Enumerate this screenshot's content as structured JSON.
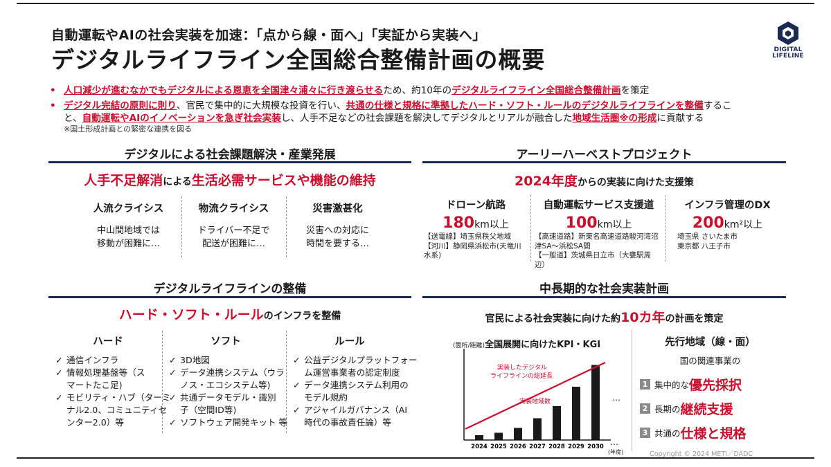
{
  "header": {
    "subtitle": "自動運転やAIの社会実装を加速：「点から線・面へ」「実証から実装へ」",
    "title": "デジタルライフライン全国総合整備計画の概要",
    "logo_line1": "DIGITAL",
    "logo_line2": "LIFELINE"
  },
  "bullets": {
    "b1_red": "人口減少が進むなかでもデジタルによる恩恵を全国津々浦々に行き渡らせる",
    "b1_mid": "ため、約10年の",
    "b1_red2": "デジタルライフライン全国総合整備計画",
    "b1_end": "を策定",
    "b2_red": "デジタル完結の原則に則り",
    "b2_mid": "、官民で集中的に大規模な投資を行い、",
    "b2_red2": "共通の仕様と規格に準拠したハード・ソフト・ルールのデジタルライフラインを整備",
    "b2_end": "するこ",
    "b3_start": "と、",
    "b3_red": "自動運転やAIのイノベーションを急ぎ社会実装",
    "b3_mid": "し、人手不足などの社会課題を解決してデジタルとリアルが融合した",
    "b3_red2": "地域生活圏※の形成",
    "b3_end": "に貢献する",
    "note": "※国土形成計画との緊密な連携を図る"
  },
  "left_top": {
    "title": "デジタルによる社会課題解決・産業発展",
    "headline_red1": "人手不足解消",
    "headline_mid": "による",
    "headline_red2": "生活必需サービスや機能の維持",
    "cols": [
      {
        "title": "人流クライシス",
        "line1": "中山間地域では",
        "line2": "移動が困難に…"
      },
      {
        "title": "物流クライシス",
        "line1": "ドライバー不足で",
        "line2": "配送が困難に…"
      },
      {
        "title": "災害激甚化",
        "line1": "災害への対応に",
        "line2": "時間を要する…"
      }
    ]
  },
  "right_top": {
    "title": "アーリーハーベストプロジェクト",
    "headline_red": "2024年度",
    "headline_rest": "からの実装に向けた支援策",
    "cols": [
      {
        "title": "ドローン航路",
        "num": "180",
        "unit": "km以上",
        "details": [
          "【送電線】埼玉県秩父地域",
          "【河川】静岡県浜松市(天竜川",
          "水系)"
        ]
      },
      {
        "title": "自動運転サービス支援道",
        "num": "100",
        "unit": "km以上",
        "details": [
          "【高速道路】新東名高速道路駿河湾沼",
          "津SA～浜松SA間",
          "【一般道】茨城県日立市（大甕駅周",
          "辺）"
        ]
      },
      {
        "title": "インフラ管理のDX",
        "num": "200",
        "unit": "km²以上",
        "details": [
          "埼玉県 さいたま市",
          "東京都 八王子市"
        ]
      }
    ]
  },
  "left_bottom": {
    "title": "デジタルライフラインの整備",
    "headline_red": "ハード・ソフト・ルール",
    "headline_rest": "のインフラを整備",
    "cols": [
      {
        "title": "ハード",
        "items": [
          "通信インフラ",
          "情報処理基盤等（ス",
          "マートたこ足)",
          "モビリティ・ハブ（ターミ",
          "ナル2.0、コミュニティセ",
          "ンター2.0）等"
        ]
      },
      {
        "title": "ソフト",
        "items": [
          "3D地図",
          "データ連携システム（ウラ",
          "ノス・エコシステム等)",
          "共通データモデル・識別",
          "子（空間ID等)",
          "ソフトウェア開発キット 等"
        ]
      },
      {
        "title": "ルール",
        "items": [
          "公益デジタルプラットフォー",
          "ム運営事業者の認定制度",
          "データ連携システム利用の",
          "モデル規約",
          "アジャイルガバナンス（AI",
          "時代の事故責任論）等"
        ]
      }
    ]
  },
  "right_bottom": {
    "title": "中長期的な社会実装計画",
    "headline_start": "官民による社会実装に向けた約",
    "headline_red": "10カ年",
    "headline_end": "の計画を策定",
    "chart_unit": "(箇所/距離)",
    "chart_title": "全国展開に向けたKPI・KGI",
    "line_label1": "実装したデジタル",
    "line_label2": "ライフラインの総延長",
    "bar_label": "実装地域数",
    "ellipsis": "…",
    "xunit": "(年度)",
    "region_title": "先行地域（線・面）",
    "region_sub": "国の関連事業の",
    "points": [
      {
        "num": "1",
        "pre": "集中的な",
        "red": "優先採択"
      },
      {
        "num": "2",
        "pre": "長期の",
        "red": "継続支援"
      },
      {
        "num": "3",
        "pre": "共通の",
        "red": "仕様と規格"
      }
    ]
  },
  "chart_data": {
    "type": "bar",
    "categories": [
      "2024",
      "2025",
      "2026",
      "2027",
      "2028",
      "2029",
      "2030"
    ],
    "series": [
      {
        "name": "実装地域数",
        "values": [
          1,
          1.5,
          2.5,
          4.5,
          7,
          11,
          15.5
        ]
      }
    ],
    "line": {
      "name": "実装したデジタルライフラインの総延長",
      "values": [
        0,
        16
      ]
    },
    "xlabel": "(年度)",
    "ylabel": "(箇所/距離)",
    "ylim": [
      0,
      18
    ],
    "colors": {
      "bar": "#1a1a1a",
      "line": "#c8102e"
    }
  },
  "footer": {
    "copyright": "Copyright ©  2024 METI／DADC"
  },
  "colors": {
    "accent": "#c8102e",
    "navy": "#1b2a55"
  }
}
